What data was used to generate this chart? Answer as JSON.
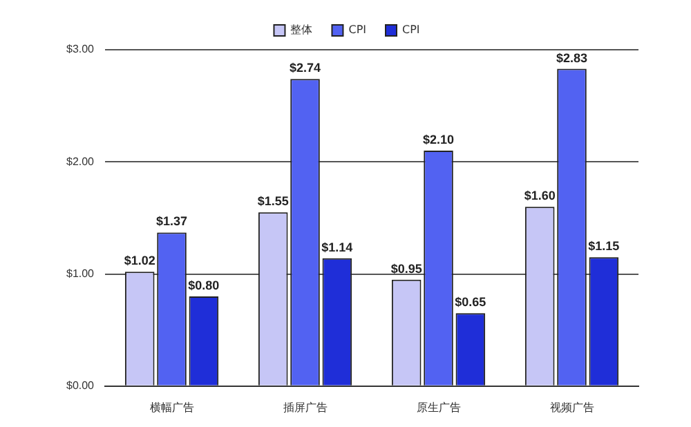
{
  "chart_data": {
    "type": "bar",
    "categories": [
      "横幅广告",
      "插屏广告",
      "原生广告",
      "视频广告"
    ],
    "series": [
      {
        "name": "整体",
        "color": "#c6c6f6",
        "values": [
          1.02,
          1.55,
          0.95,
          1.6
        ],
        "value_labels": [
          "$1.02",
          "$1.55",
          "$0.95",
          "$1.60"
        ]
      },
      {
        "name": "CPI",
        "color": "#5262f2",
        "values": [
          1.37,
          2.74,
          2.1,
          2.83
        ],
        "value_labels": [
          "$1.37",
          "$2.74",
          "$2.10",
          "$2.83"
        ]
      },
      {
        "name": "CPI",
        "color": "#1f2ed8",
        "values": [
          0.8,
          1.14,
          0.65,
          1.15
        ],
        "value_labels": [
          "$0.80",
          "$1.14",
          "$0.65",
          "$1.15"
        ]
      }
    ],
    "ylim": [
      0,
      3
    ],
    "yticks": [
      {
        "value": 0,
        "label": "$0.00"
      },
      {
        "value": 1,
        "label": "$1.00"
      },
      {
        "value": 2,
        "label": "$2.00"
      },
      {
        "value": 3,
        "label": "$3.00"
      }
    ],
    "grid": "y",
    "legend": "top"
  }
}
